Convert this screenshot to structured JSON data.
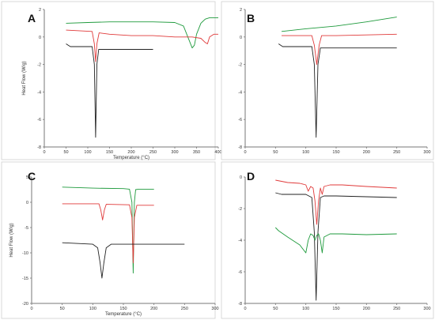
{
  "colors": {
    "green": "#1e9a3c",
    "red": "#e03a3a",
    "black": "#222222"
  },
  "chart_data": [
    {
      "panel": "A",
      "type": "line",
      "xlabel": "Temperature (°C)",
      "ylabel": "Heat Flow (W/g)",
      "xlim": [
        0,
        400
      ],
      "ylim": [
        -8,
        2
      ],
      "xticks": [
        0,
        50,
        100,
        150,
        200,
        250,
        300,
        350,
        400
      ],
      "yticks": [
        2,
        0,
        -2,
        -4,
        -6,
        -8
      ],
      "series": [
        {
          "color": "green",
          "x": [
            50,
            100,
            150,
            200,
            250,
            300,
            320,
            330,
            340,
            345,
            350,
            360,
            370,
            380,
            390,
            400
          ],
          "y": [
            1.0,
            1.05,
            1.1,
            1.1,
            1.1,
            1.05,
            0.8,
            0.0,
            -0.8,
            -0.6,
            0.2,
            1.0,
            1.3,
            1.4,
            1.4,
            1.4
          ]
        },
        {
          "color": "red",
          "x": [
            50,
            110,
            115,
            118,
            121,
            126,
            150,
            200,
            250,
            300,
            340,
            360,
            370,
            375,
            380,
            390,
            395,
            400
          ],
          "y": [
            0.5,
            0.4,
            -0.5,
            -1.8,
            -0.5,
            0.3,
            0.2,
            0.1,
            0.1,
            0.0,
            0.0,
            -0.1,
            -0.4,
            -0.5,
            0.0,
            0.2,
            0.2,
            0.2
          ]
        },
        {
          "color": "black",
          "x": [
            50,
            60,
            110,
            115,
            118,
            121,
            125,
            150,
            200,
            250
          ],
          "y": [
            -0.5,
            -0.7,
            -0.7,
            -2.0,
            -7.3,
            -2.0,
            -0.9,
            -0.9,
            -0.9,
            -0.9
          ]
        }
      ]
    },
    {
      "panel": "B",
      "type": "line",
      "xlabel": "",
      "ylabel": "",
      "xlim": [
        0,
        300
      ],
      "ylim": [
        -8,
        2
      ],
      "xticks": [
        0,
        50,
        100,
        150,
        200,
        250,
        300
      ],
      "yticks": [
        2,
        0,
        -2,
        -4,
        -6,
        -8
      ],
      "series": [
        {
          "color": "green",
          "x": [
            60,
            100,
            150,
            200,
            250
          ],
          "y": [
            0.4,
            0.6,
            0.8,
            1.1,
            1.45
          ]
        },
        {
          "color": "red",
          "x": [
            60,
            110,
            114,
            118,
            122,
            126,
            150,
            200,
            250
          ],
          "y": [
            0.1,
            0.1,
            -0.6,
            -2.0,
            -0.6,
            0.1,
            0.1,
            0.15,
            0.2
          ]
        },
        {
          "color": "black",
          "x": [
            55,
            62,
            110,
            114,
            117,
            120,
            124,
            150,
            200,
            250
          ],
          "y": [
            -0.5,
            -0.7,
            -0.7,
            -2.0,
            -7.3,
            -2.0,
            -0.8,
            -0.8,
            -0.8,
            -0.8
          ]
        }
      ]
    },
    {
      "panel": "C",
      "type": "line",
      "xlabel": "Temperature (°C)",
      "ylabel": "Heat Flow (W/g)",
      "xlim": [
        0,
        300
      ],
      "ylim": [
        -20,
        5
      ],
      "xticks": [
        0,
        50,
        100,
        150,
        200,
        250,
        300
      ],
      "yticks": [
        5,
        0,
        -5,
        -10,
        -15,
        -20
      ],
      "series": [
        {
          "color": "green",
          "x": [
            50,
            100,
            150,
            160,
            164,
            166,
            168,
            170,
            175,
            200
          ],
          "y": [
            3.0,
            2.8,
            2.7,
            2.6,
            0.0,
            -14.0,
            0.0,
            2.5,
            2.6,
            2.6
          ]
        },
        {
          "color": "red",
          "x": [
            50,
            110,
            113,
            116,
            119,
            122,
            160,
            164,
            166,
            168,
            172,
            200
          ],
          "y": [
            -0.3,
            -0.3,
            -1.5,
            -3.5,
            -1.5,
            -0.4,
            -0.5,
            -3.0,
            -12.0,
            -3.0,
            -0.6,
            -0.6
          ]
        },
        {
          "color": "black",
          "x": [
            50,
            100,
            108,
            112,
            115,
            118,
            122,
            130,
            150,
            200,
            250
          ],
          "y": [
            -8.0,
            -8.3,
            -9.0,
            -12.0,
            -15.0,
            -12.0,
            -9.0,
            -8.3,
            -8.3,
            -8.3,
            -8.3
          ]
        }
      ]
    },
    {
      "panel": "D",
      "type": "line",
      "xlabel": "",
      "ylabel": "",
      "xlim": [
        0,
        300
      ],
      "ylim": [
        -8,
        0
      ],
      "xticks": [
        0,
        50,
        100,
        150,
        200,
        250,
        300
      ],
      "yticks": [
        0,
        -2,
        -4,
        -6,
        -8
      ],
      "series": [
        {
          "color": "red",
          "x": [
            50,
            70,
            90,
            100,
            104,
            108,
            112,
            115,
            118,
            121,
            124,
            127,
            130,
            140,
            160,
            200,
            250
          ],
          "y": [
            -0.2,
            -0.35,
            -0.4,
            -0.5,
            -0.9,
            -0.6,
            -0.7,
            -1.5,
            -3.0,
            -1.5,
            -0.7,
            -1.1,
            -0.6,
            -0.5,
            -0.5,
            -0.6,
            -0.7
          ]
        },
        {
          "color": "black",
          "x": [
            50,
            60,
            100,
            110,
            114,
            117,
            120,
            124,
            130,
            150,
            200,
            250
          ],
          "y": [
            -1.0,
            -1.1,
            -1.1,
            -1.3,
            -3.5,
            -7.8,
            -3.5,
            -1.3,
            -1.2,
            -1.2,
            -1.25,
            -1.3
          ]
        },
        {
          "color": "green",
          "x": [
            50,
            55,
            70,
            90,
            100,
            104,
            108,
            112,
            115,
            118,
            121,
            124,
            127,
            130,
            140,
            160,
            200,
            250
          ],
          "y": [
            -3.2,
            -3.4,
            -3.8,
            -4.3,
            -4.8,
            -4.0,
            -3.6,
            -3.7,
            -4.0,
            -3.7,
            -3.6,
            -4.0,
            -4.8,
            -3.8,
            -3.6,
            -3.6,
            -3.65,
            -3.6
          ]
        }
      ]
    }
  ]
}
